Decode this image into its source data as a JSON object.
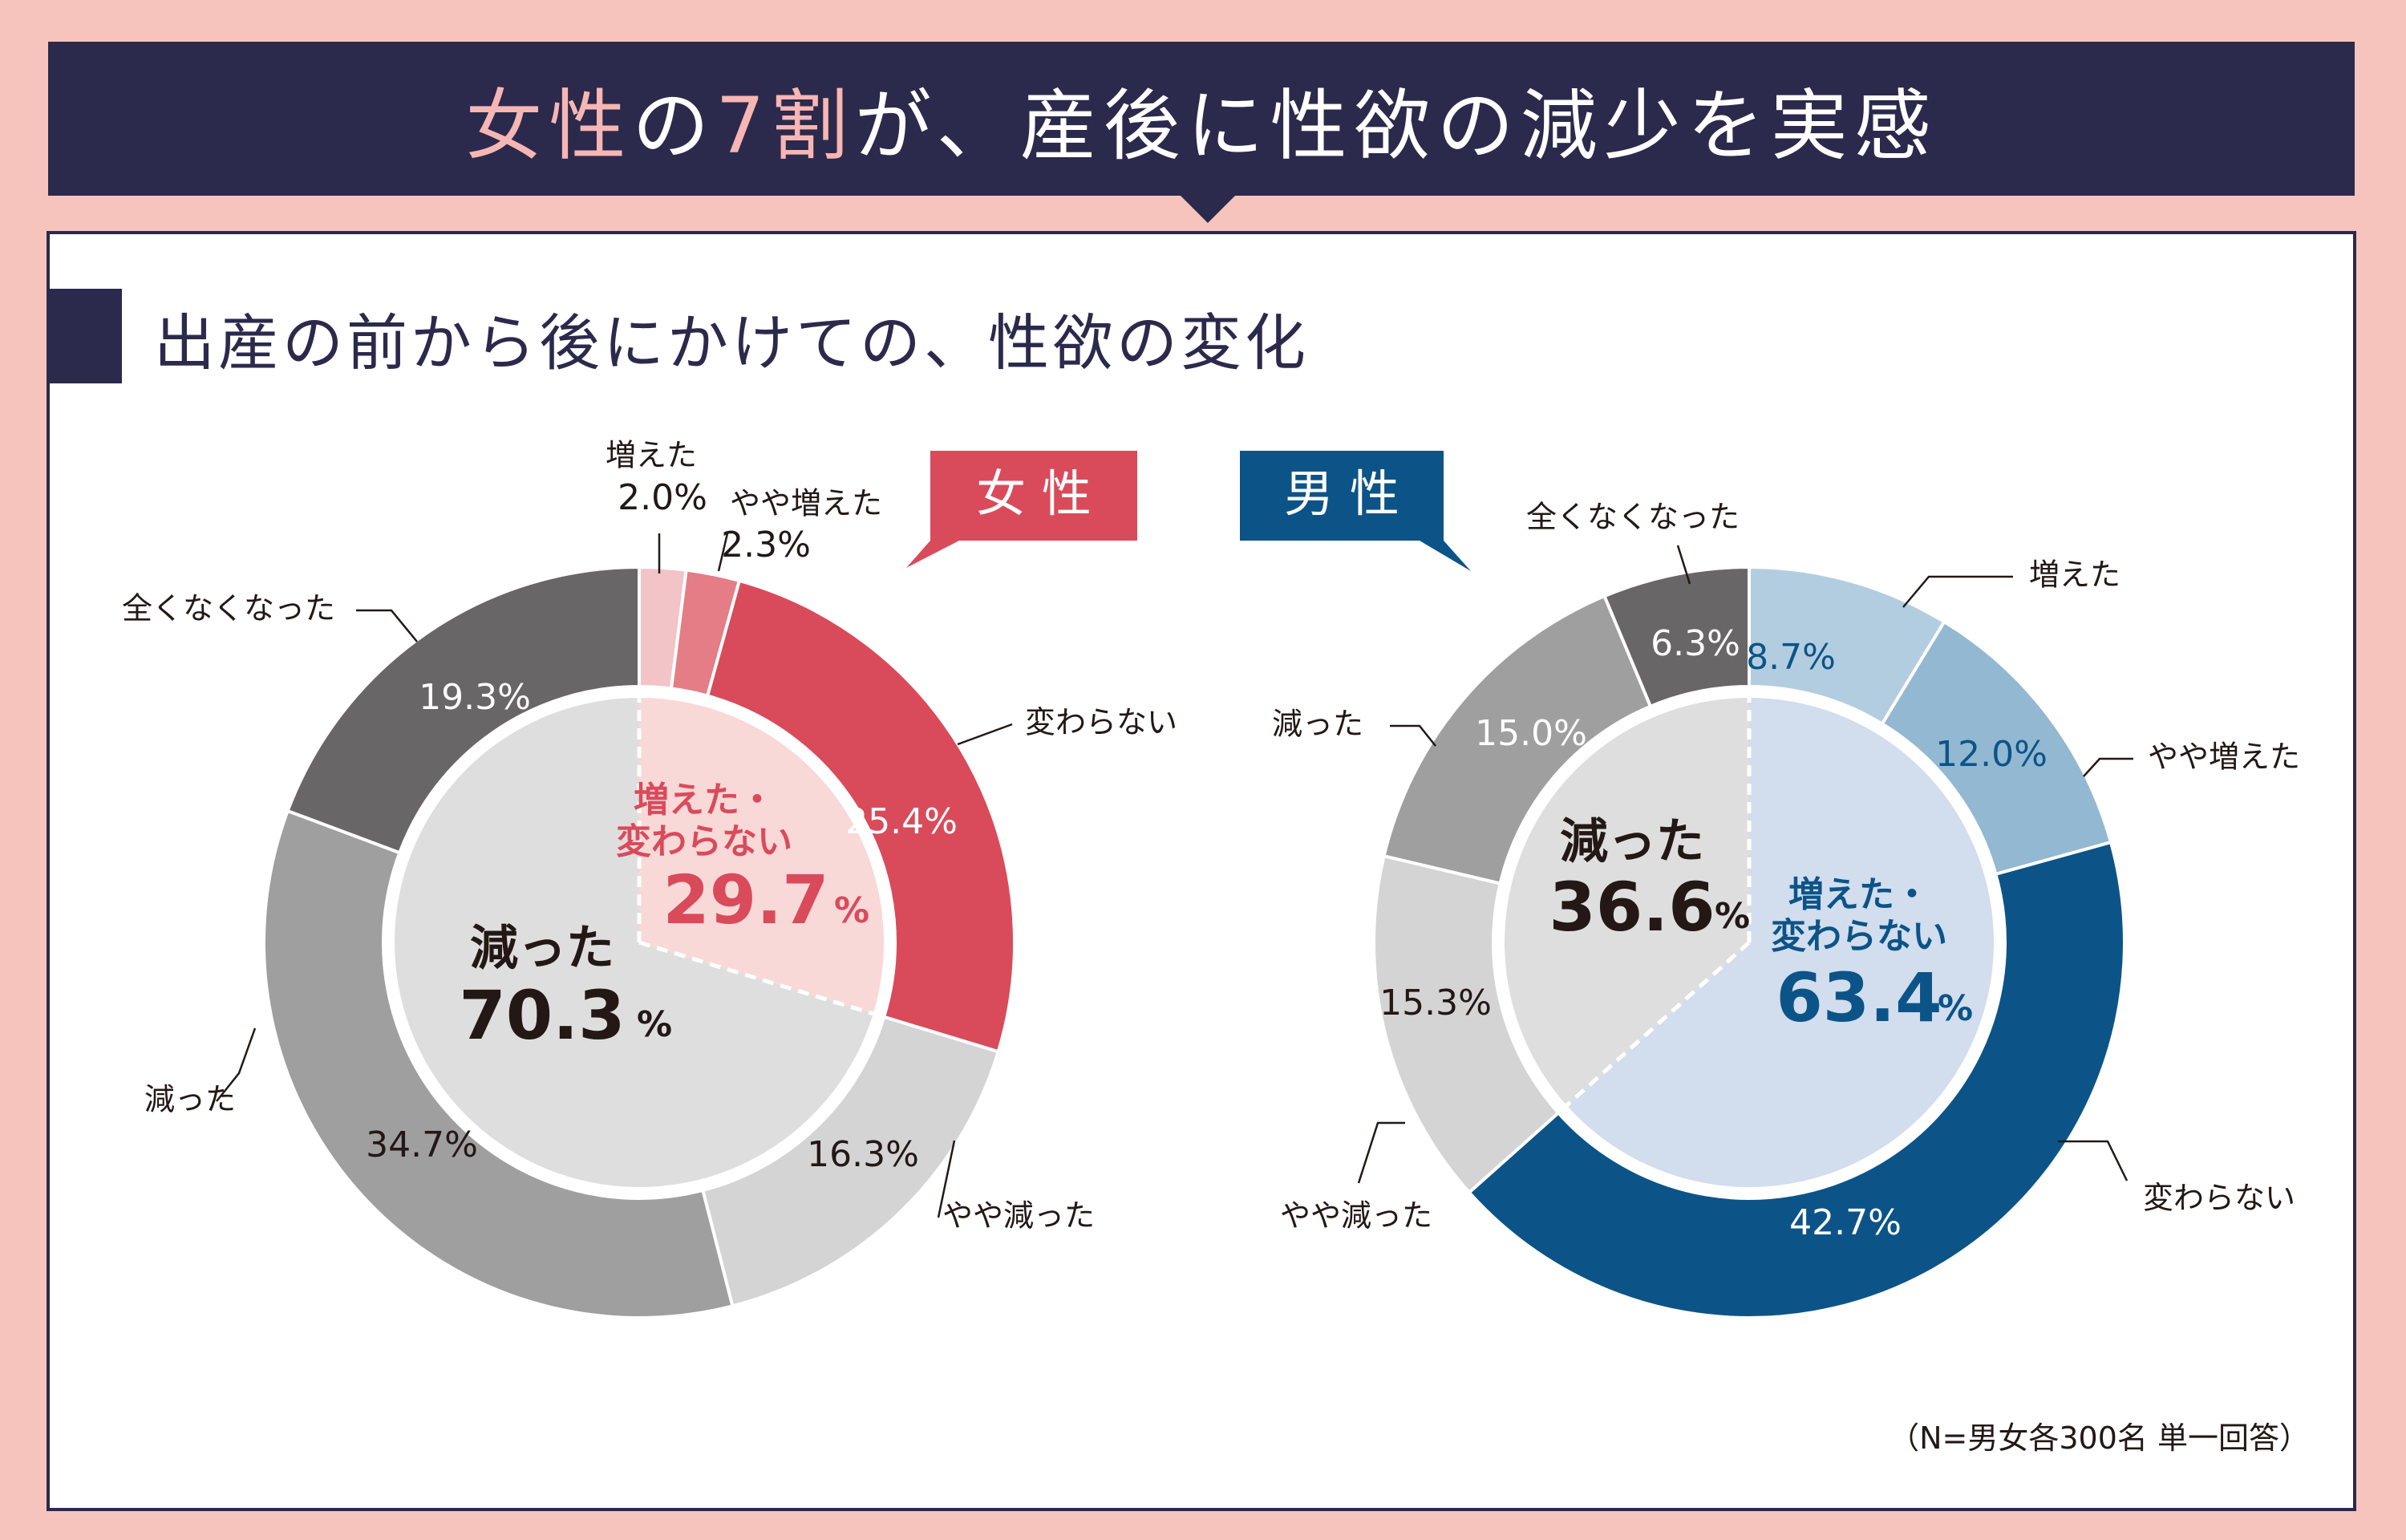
{
  "header": {
    "title_pink_1": "女性",
    "title_1": "の",
    "title_pink_2": "7割",
    "title_2": "が、産後に性欲の減少を実感"
  },
  "subtitle": "出産の前から後にかけての、性欲の変化",
  "note": "（N=男女各300名 単一回答）",
  "colors": {
    "banner": "#2b2a4c",
    "background": "#f6c4bd",
    "women_accent": "#d94b5a",
    "men_accent": "#0c5488"
  },
  "chart_data": [
    {
      "type": "pie",
      "name": "女 性",
      "unit": "%",
      "slices": [
        {
          "label": "増えた",
          "value": 2.0,
          "value_text": "2.0%",
          "color": "#f2c4c7"
        },
        {
          "label": "やや増えた",
          "value": 2.3,
          "value_text": "2.3%",
          "color": "#e47d85"
        },
        {
          "label": "変わらない",
          "value": 25.4,
          "value_text": "25.4%",
          "color": "#d94b5a"
        },
        {
          "label": "やや減った",
          "value": 16.3,
          "value_text": "16.3%",
          "color": "#d4d4d4"
        },
        {
          "label": "減った",
          "value": 34.7,
          "value_text": "34.7%",
          "color": "#a09fa0"
        },
        {
          "label": "全くなくなった",
          "value": 19.3,
          "value_text": "19.3%",
          "color": "#686667"
        }
      ],
      "inner": [
        {
          "label_1": "増えた・",
          "label_2": "変わらない",
          "value": 29.7,
          "value_text": "29.7",
          "pct": "%",
          "color": "#f9d8d8",
          "text_color": "#d94b5a"
        },
        {
          "label_1": "減った",
          "label_2": "",
          "value": 70.3,
          "value_text": "70.3",
          "pct": "%",
          "color": "#dedede",
          "text_color": "#231815"
        }
      ]
    },
    {
      "type": "pie",
      "name": "男 性",
      "unit": "%",
      "slices": [
        {
          "label": "増えた",
          "value": 8.7,
          "value_text": "8.7%",
          "color": "#b3cde0"
        },
        {
          "label": "やや増えた",
          "value": 12.0,
          "value_text": "12.0%",
          "color": "#93b8d1"
        },
        {
          "label": "変わらない",
          "value": 42.7,
          "value_text": "42.7%",
          "color": "#0c5488"
        },
        {
          "label": "やや減った",
          "value": 15.3,
          "value_text": "15.3%",
          "color": "#d4d4d4"
        },
        {
          "label": "減った",
          "value": 15.0,
          "value_text": "15.0%",
          "color": "#a09fa0"
        },
        {
          "label": "全くなくなった",
          "value": 6.3,
          "value_text": "6.3%",
          "color": "#686667"
        }
      ],
      "inner": [
        {
          "label_1": "増えた・",
          "label_2": "変わらない",
          "value": 63.4,
          "value_text": "63.4",
          "pct": "%",
          "color": "#d2ddee",
          "text_color": "#0c5488"
        },
        {
          "label_1": "減った",
          "label_2": "",
          "value": 36.6,
          "value_text": "36.6",
          "pct": "%",
          "color": "#dedede",
          "text_color": "#231815"
        }
      ]
    }
  ]
}
